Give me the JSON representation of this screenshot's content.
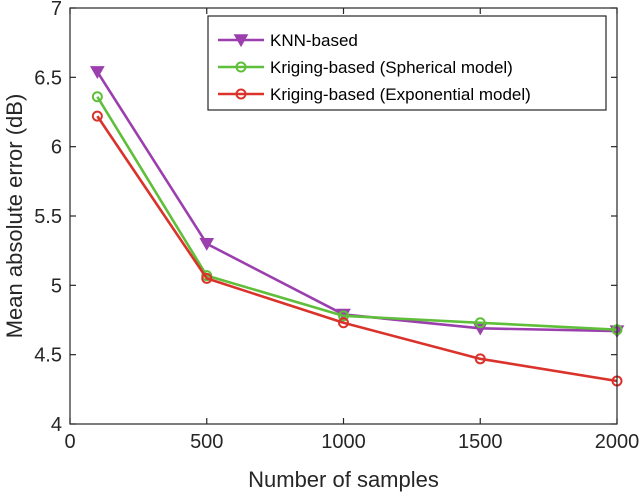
{
  "chart_data": {
    "type": "line",
    "title": "",
    "xlabel": "Number of samples",
    "ylabel": "Mean absolute error (dB)",
    "xlim": [
      0,
      2000
    ],
    "ylim": [
      4,
      7
    ],
    "xticks": [
      0,
      500,
      1000,
      1500,
      2000
    ],
    "yticks": [
      4,
      4.5,
      5,
      5.5,
      6,
      6.5,
      7
    ],
    "xtick_labels": [
      "0",
      "500",
      "1000",
      "1500",
      "2000"
    ],
    "ytick_labels": [
      "4",
      "4.5",
      "5",
      "5.5",
      "6",
      "6.5",
      "7"
    ],
    "grid": false,
    "legend_position": "top-right",
    "x": [
      100,
      500,
      1000,
      1500,
      2000
    ],
    "series": [
      {
        "name": "KNN-based",
        "values": [
          6.54,
          5.3,
          4.79,
          4.69,
          4.67
        ],
        "color": "#9b3fae",
        "marker": "triangle-down"
      },
      {
        "name": "Kriging-based (Spherical model)",
        "values": [
          6.36,
          5.07,
          4.78,
          4.73,
          4.68
        ],
        "color": "#5fbf3a",
        "marker": "circle"
      },
      {
        "name": "Kriging-based (Exponential model)",
        "values": [
          6.22,
          5.05,
          4.73,
          4.47,
          4.31
        ],
        "color": "#d9332b",
        "marker": "circle"
      }
    ]
  }
}
